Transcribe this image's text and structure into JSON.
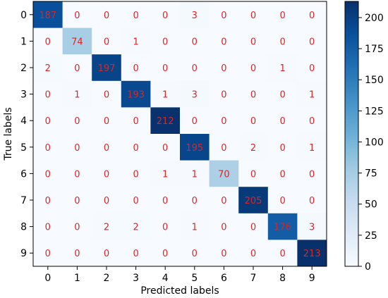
{
  "chart_data": {
    "type": "heatmap",
    "title": "",
    "xlabel": "Predicted labels",
    "ylabel": "True labels",
    "x_categories": [
      "0",
      "1",
      "2",
      "3",
      "4",
      "5",
      "6",
      "7",
      "8",
      "9"
    ],
    "y_categories": [
      "0",
      "1",
      "2",
      "3",
      "4",
      "5",
      "6",
      "7",
      "8",
      "9"
    ],
    "matrix": [
      [
        187,
        0,
        0,
        0,
        0,
        3,
        0,
        0,
        0,
        0
      ],
      [
        0,
        74,
        0,
        1,
        0,
        0,
        0,
        0,
        0,
        0
      ],
      [
        2,
        0,
        197,
        0,
        0,
        0,
        0,
        0,
        1,
        0
      ],
      [
        0,
        1,
        0,
        193,
        1,
        3,
        0,
        0,
        0,
        1
      ],
      [
        0,
        0,
        0,
        0,
        212,
        0,
        0,
        0,
        0,
        0
      ],
      [
        0,
        0,
        0,
        0,
        0,
        195,
        0,
        2,
        0,
        1
      ],
      [
        0,
        0,
        0,
        0,
        1,
        1,
        70,
        0,
        0,
        0
      ],
      [
        0,
        0,
        0,
        0,
        0,
        0,
        0,
        205,
        0,
        0
      ],
      [
        0,
        0,
        2,
        2,
        0,
        1,
        0,
        0,
        176,
        3
      ],
      [
        0,
        0,
        0,
        0,
        0,
        0,
        0,
        0,
        0,
        213
      ]
    ],
    "colormap": "Blues",
    "annotation_color": "#d62728",
    "colorbar": {
      "min": 0,
      "max": 213,
      "ticks": [
        0,
        25,
        50,
        75,
        100,
        125,
        150,
        175,
        200
      ]
    }
  }
}
